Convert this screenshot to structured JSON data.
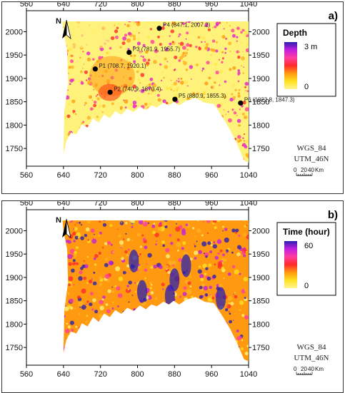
{
  "axes": {
    "x_ticks": [
      "560",
      "640",
      "720",
      "800",
      "880",
      "960",
      "1040"
    ],
    "y_ticks": [
      "2000",
      "1950",
      "1900",
      "1850",
      "1800",
      "1750"
    ]
  },
  "panels": [
    {
      "label": "a)",
      "legend": {
        "title": "Depth",
        "max_label": "3 m",
        "min_label": "0",
        "gradient": [
          "#2a1fb0",
          "#c41fe0",
          "#ff3da0",
          "#ff2a2a",
          "#ff9a10",
          "#ffe020",
          "#fff590"
        ]
      },
      "projection": [
        "WGS_84",
        "UTM_46N"
      ],
      "scale": {
        "ticks": [
          "0",
          "20",
          "40"
        ],
        "unit": "Km"
      },
      "north": "N",
      "points": [
        {
          "label": "P1 (708.7, 1920.1)",
          "x": 708.7,
          "y": 1920.1
        },
        {
          "label": "P2 (740.9, 1870.4)",
          "x": 740.9,
          "y": 1870.4
        },
        {
          "label": "P3 (781.9, 1955.7)",
          "x": 781.9,
          "y": 1955.7
        },
        {
          "label": "P4 (847.1, 2007.2)",
          "x": 847.1,
          "y": 2007.2
        },
        {
          "label": "P5 (880.9, 1855.3)",
          "x": 880.9,
          "y": 1855.3
        },
        {
          "label": "P6 (1022.8, 1847.3)",
          "x": 1022.8,
          "y": 1847.3
        }
      ]
    },
    {
      "label": "b)",
      "legend": {
        "title": "Time (hour)",
        "max_label": "60",
        "min_label": "0",
        "gradient": [
          "#2a1fb0",
          "#c41fe0",
          "#ff3da0",
          "#ff2a2a",
          "#ff9a10",
          "#ffe020",
          "#fff590"
        ]
      },
      "projection": [
        "WGS_84",
        "UTM_46N"
      ],
      "scale": {
        "ticks": [
          "0",
          "20",
          "40"
        ],
        "unit": "Km"
      },
      "north": "N",
      "points": []
    }
  ]
}
